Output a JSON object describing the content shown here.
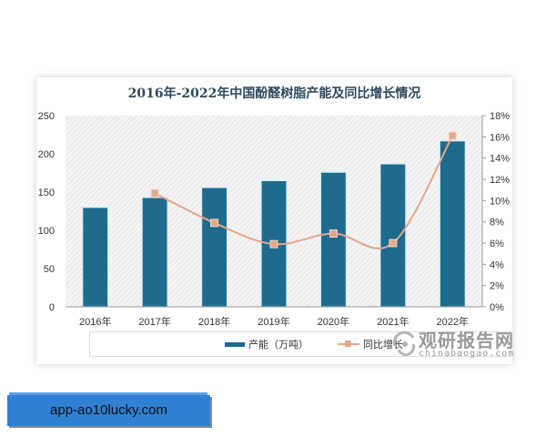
{
  "chart_data": {
    "type": "bar",
    "title": "2016年-2022年中国酚醛树脂产能及同比增长情况",
    "categories": [
      "2016年",
      "2017年",
      "2018年",
      "2019年",
      "2020年",
      "2021年",
      "2022年"
    ],
    "series": [
      {
        "name": "产能（万吨）",
        "type": "bar",
        "axis": "left",
        "color": "#1f6b8e",
        "values": [
          130,
          143,
          156,
          165,
          176,
          187,
          217
        ]
      },
      {
        "name": "同比增长",
        "type": "line",
        "axis": "right",
        "color": "#e3a98c",
        "values": [
          null,
          10.7,
          7.9,
          5.9,
          6.9,
          6.0,
          16.1
        ]
      }
    ],
    "left_axis": {
      "ylim": [
        0,
        250
      ],
      "ticks": [
        "0",
        "50",
        "100",
        "150",
        "200",
        "250"
      ]
    },
    "right_axis": {
      "ylim": [
        0,
        18
      ],
      "ticks": [
        "0%",
        "2%",
        "4%",
        "6%",
        "8%",
        "10%",
        "12%",
        "14%",
        "16%",
        "18%"
      ]
    },
    "xlabel": "",
    "ylabel": "",
    "grid": false,
    "legend_position": "bottom"
  },
  "legend": {
    "bar_label": "产能（万吨）",
    "line_label": "同比增长"
  },
  "watermark": {
    "cn": "观研报告网",
    "en": "chinabaogao.com"
  },
  "banner": {
    "text": "app-ao10lucky.com"
  }
}
